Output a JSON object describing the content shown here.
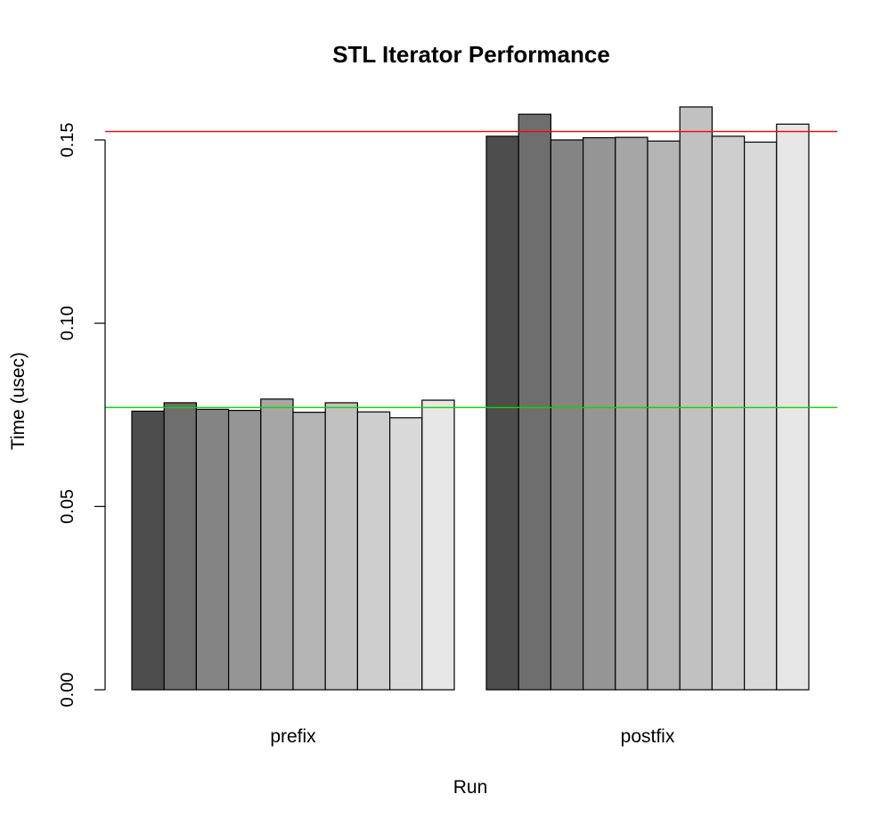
{
  "chart_data": {
    "type": "bar",
    "title": "STL Iterator Performance",
    "xlabel": "Run",
    "ylabel": "Time (usec)",
    "ylim": [
      0,
      0.15
    ],
    "yticks": [
      "0.00",
      "0.05",
      "0.10",
      "0.15"
    ],
    "categories": [
      "prefix",
      "postfix"
    ],
    "series": [
      {
        "values": [
          0.076,
          0.151
        ],
        "color": "#4d4d4d"
      },
      {
        "values": [
          0.0783,
          0.157
        ],
        "color": "#6e6e6e"
      },
      {
        "values": [
          0.0765,
          0.15
        ],
        "color": "#848484"
      },
      {
        "values": [
          0.0762,
          0.1506
        ],
        "color": "#959595"
      },
      {
        "values": [
          0.0793,
          0.1507
        ],
        "color": "#a6a6a6"
      },
      {
        "values": [
          0.0757,
          0.1497
        ],
        "color": "#b4b4b4"
      },
      {
        "values": [
          0.0783,
          0.159
        ],
        "color": "#c1c1c1"
      },
      {
        "values": [
          0.0758,
          0.151
        ],
        "color": "#cdcdcd"
      },
      {
        "values": [
          0.0742,
          0.1494
        ],
        "color": "#d9d9d9"
      },
      {
        "values": [
          0.079,
          0.1543
        ],
        "color": "#e6e6e6"
      }
    ],
    "reference_lines": [
      {
        "value": 0.1523,
        "color": "#ff0000"
      },
      {
        "value": 0.077,
        "color": "#00dd00"
      }
    ],
    "grid": false,
    "legend": "none"
  }
}
